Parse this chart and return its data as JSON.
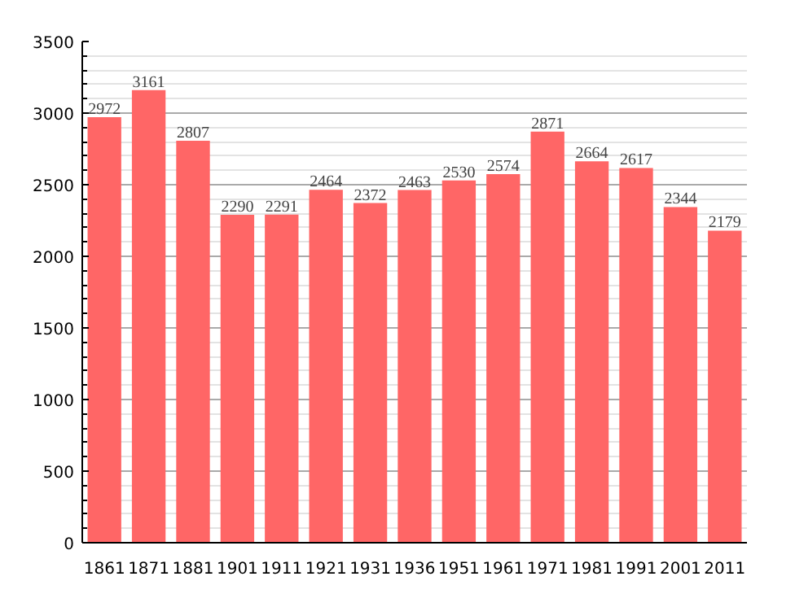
{
  "chart_data": {
    "type": "bar",
    "categories": [
      "1861",
      "1871",
      "1881",
      "1901",
      "1911",
      "1921",
      "1931",
      "1936",
      "1951",
      "1961",
      "1971",
      "1981",
      "1991",
      "2001",
      "2011"
    ],
    "values": [
      2972,
      3161,
      2807,
      2290,
      2291,
      2464,
      2372,
      2463,
      2530,
      2574,
      2871,
      2664,
      2617,
      2344,
      2179
    ],
    "color": "#ff6666",
    "ylim": [
      0,
      3500
    ],
    "yticks": [
      0,
      500,
      1000,
      1500,
      2000,
      2500,
      3000,
      3500
    ],
    "grid": "y",
    "data_labels": true
  }
}
